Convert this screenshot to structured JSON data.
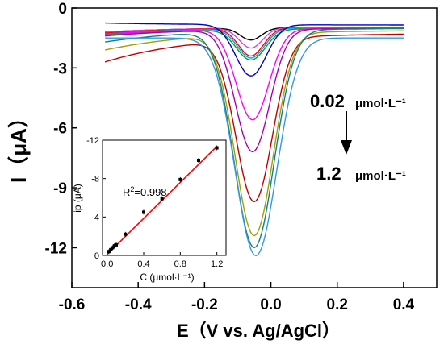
{
  "chart_data": [
    {
      "type": "line",
      "xlabel": "E（V vs. Ag/AgCl）",
      "ylabel": "I（μA）",
      "xlim": [
        -0.6,
        0.5
      ],
      "ylim": [
        -14,
        0
      ],
      "x_ticks": [
        "-0.6",
        "-0.4",
        "-0.2",
        "0.0",
        "0.2",
        "0.4"
      ],
      "y_ticks": [
        "0",
        "-3",
        "-6",
        "-9",
        "-12"
      ],
      "annotations": {
        "start_value": "0.02",
        "start_unit": "μmol·L⁻¹",
        "end_value": "1.2",
        "end_unit": "μmol·L⁻¹"
      },
      "x_range": [
        -0.5,
        0.4
      ],
      "series": [
        {
          "color": "#000000",
          "start": -1.2,
          "end": -0.95,
          "peak": -1.6,
          "peak_x": -0.06
        },
        {
          "color": "#e040e0",
          "start": -1.2,
          "end": -0.95,
          "peak": -2.0,
          "peak_x": -0.06
        },
        {
          "color": "#ff0000",
          "start": -1.25,
          "end": -0.95,
          "peak": -2.4,
          "peak_x": -0.06
        },
        {
          "color": "#00a0ff",
          "start": -1.3,
          "end": -0.95,
          "peak": -2.5,
          "peak_x": -0.06
        },
        {
          "color": "#00aa00",
          "start": -1.35,
          "end": -1.0,
          "peak": -2.6,
          "peak_x": -0.06
        },
        {
          "color": "#0000cc",
          "start": -0.75,
          "end": -0.85,
          "peak": -3.4,
          "peak_x": -0.06
        },
        {
          "color": "#ff00ff",
          "start": -1.3,
          "end": -1.0,
          "peak": -5.6,
          "peak_x": -0.055
        },
        {
          "color": "#aa00aa",
          "start": -1.4,
          "end": -1.0,
          "peak": -7.2,
          "peak_x": -0.055
        },
        {
          "color": "#c00000",
          "start": -2.7,
          "end": -1.25,
          "peak": -9.7,
          "peak_x": -0.05
        },
        {
          "color": "#a0a000",
          "start": -2.1,
          "end": -1.1,
          "peak": -11.4,
          "peak_x": -0.05
        },
        {
          "color": "#108080",
          "start": -1.7,
          "end": -1.0,
          "peak": -12.0,
          "peak_x": -0.05
        },
        {
          "color": "#3399dd",
          "start": -1.5,
          "end": -1.5,
          "peak": -12.4,
          "peak_x": -0.045
        }
      ]
    },
    {
      "type": "scatter",
      "xlabel": "C (μmol·L⁻¹)",
      "ylabel": "ip (μA)",
      "xlim": [
        -0.05,
        1.3
      ],
      "ylim": [
        0,
        -12
      ],
      "x_ticks": [
        "0.0",
        "0.4",
        "0.8",
        "1.2"
      ],
      "y_ticks": [
        "-12",
        "-8",
        "-4",
        "0"
      ],
      "r2_label": "R",
      "r2_sup": "2",
      "r2_value": "=0.998",
      "fit_line": {
        "x": [
          0.0,
          1.2
        ],
        "y": [
          -0.1,
          -11.35
        ],
        "color": "#ff0000"
      },
      "x": [
        0.02,
        0.04,
        0.06,
        0.08,
        0.1,
        0.2,
        0.4,
        0.6,
        0.8,
        1.0,
        1.2
      ],
      "y": [
        -0.4,
        -0.6,
        -0.8,
        -1.0,
        -1.1,
        -2.2,
        -4.5,
        -5.9,
        -7.9,
        -9.9,
        -11.2
      ]
    }
  ]
}
